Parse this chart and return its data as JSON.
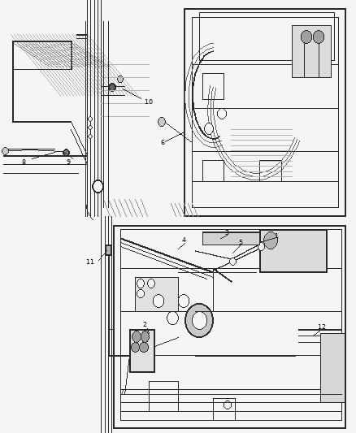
{
  "bg_color": "#f5f5f5",
  "line_color": "#2a2a2a",
  "gray_fill": "#888888",
  "light_gray": "#cccccc",
  "figsize": [
    4.38,
    5.33
  ],
  "dpi": 100,
  "font_size": 7.5,
  "label_font_size": 7.5
}
